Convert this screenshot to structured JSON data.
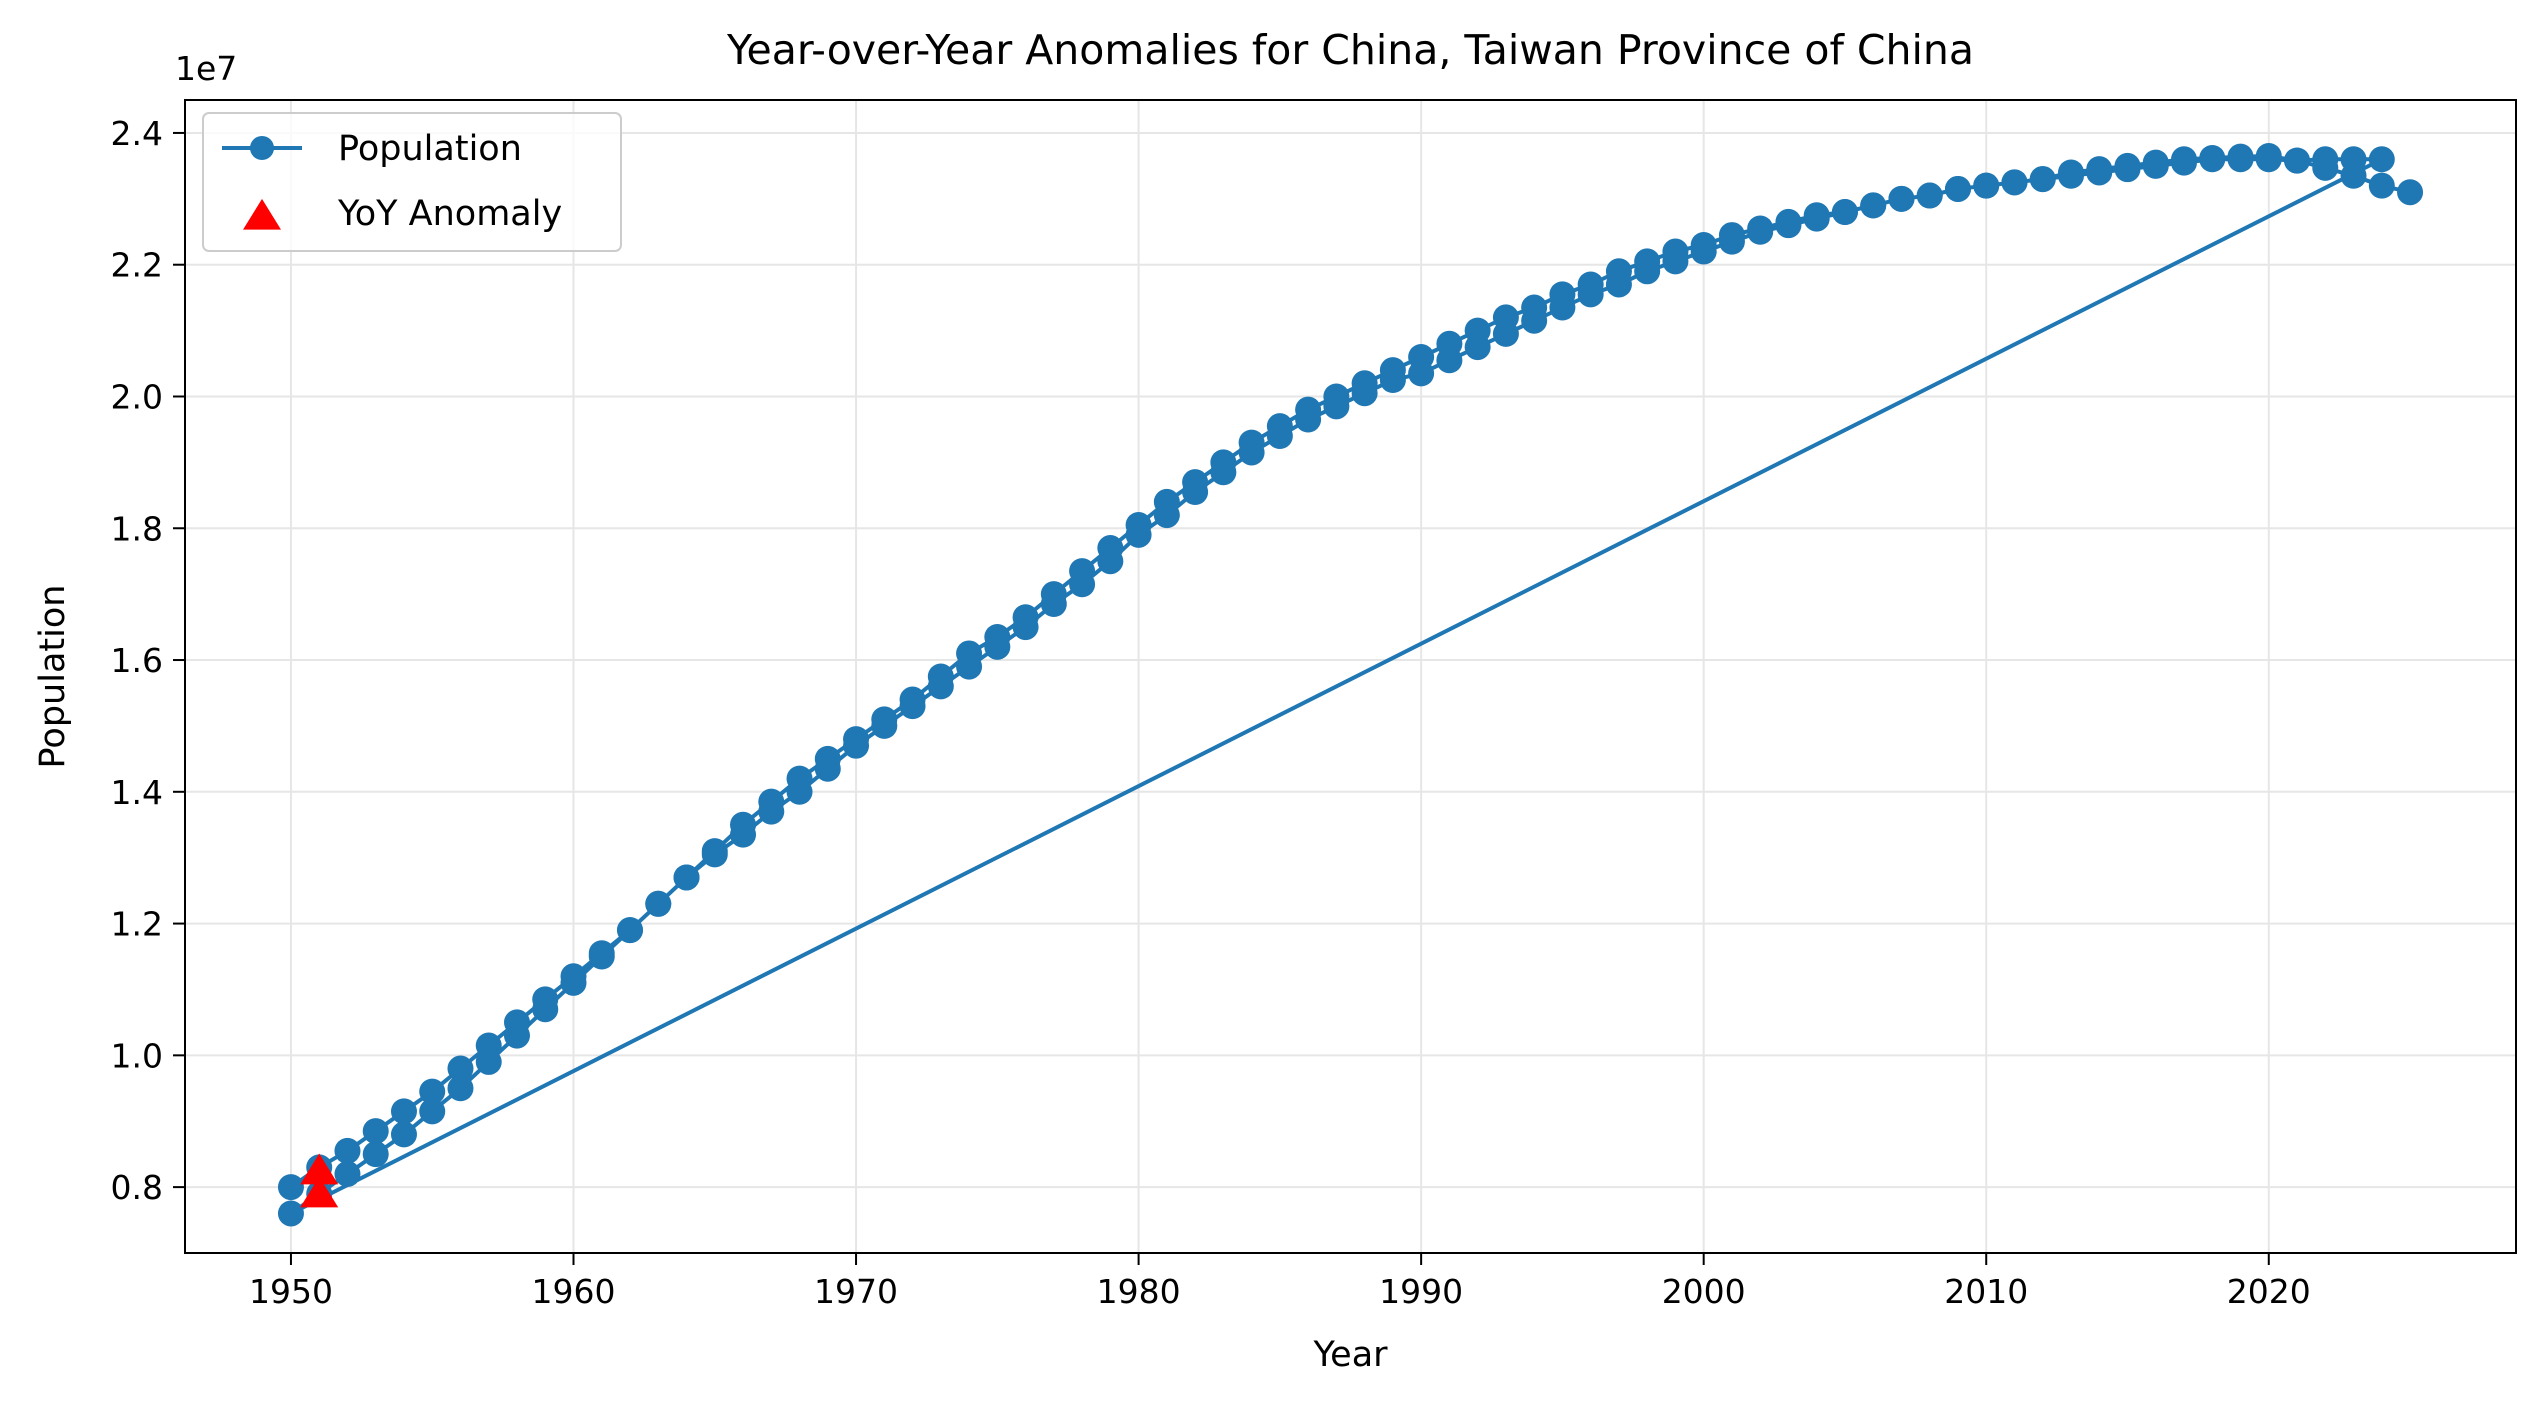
{
  "chart_data": {
    "type": "line",
    "title": "Year-over-Year Anomalies for China, Taiwan Province of China",
    "xlabel": "Year",
    "ylabel": "Population",
    "y_scale_label": "1e7",
    "xlim": [
      1946.25,
      2028.75
    ],
    "ylim": [
      0.7,
      2.45
    ],
    "y_multiplier": 10000000,
    "xticks": [
      1950,
      1960,
      1970,
      1980,
      1990,
      2000,
      2010,
      2020
    ],
    "yticks": [
      0.8,
      1.0,
      1.2,
      1.4,
      1.6,
      1.8,
      2.0,
      2.2,
      2.4
    ],
    "ytick_labels": [
      "0.8",
      "1.0",
      "1.2",
      "1.4",
      "1.6",
      "1.8",
      "2.0",
      "2.2",
      "2.4"
    ],
    "grid": true,
    "legend_position": "top-left",
    "colors": {
      "line": "#1f77b4",
      "anomaly": "#ff0000",
      "grid": "#e6e6e6"
    },
    "series": [
      {
        "name": "Population",
        "marker": "circle",
        "x": [
          1950,
          1951,
          1952,
          1953,
          1954,
          1955,
          1956,
          1957,
          1958,
          1959,
          1960,
          1961,
          1962,
          1963,
          1964,
          1965,
          1966,
          1967,
          1968,
          1969,
          1970,
          1971,
          1972,
          1973,
          1974,
          1975,
          1976,
          1977,
          1978,
          1979,
          1980,
          1981,
          1982,
          1983,
          1984,
          1985,
          1986,
          1987,
          1988,
          1989,
          1990,
          1991,
          1992,
          1993,
          1994,
          1995,
          1996,
          1997,
          1998,
          1999,
          2000,
          2001,
          2002,
          2003,
          2004,
          2005,
          2006,
          2007,
          2008,
          2009,
          2010,
          2011,
          2012,
          2013,
          2014,
          2015,
          2016,
          2017,
          2018,
          2019,
          2020,
          2021,
          2022,
          2023,
          2024,
          1950,
          1951,
          1952,
          1953,
          1954,
          1955,
          1956,
          1957,
          1958,
          1959,
          1960,
          1961,
          1962,
          1963,
          1964,
          1965,
          1966,
          1967,
          1968,
          1969,
          1970,
          1971,
          1972,
          1973,
          1974,
          1975,
          1976,
          1977,
          1978,
          1979,
          1980,
          1981,
          1982,
          1983,
          1984,
          1985,
          1986,
          1987,
          1988,
          1989,
          1990,
          1991,
          1992,
          1993,
          1994,
          1995,
          1996,
          1997,
          1998,
          1999,
          2000,
          2001,
          2002,
          2003,
          2004,
          2005,
          2006,
          2007,
          2008,
          2009,
          2010,
          2011,
          2012,
          2013,
          2014,
          2015,
          2016,
          2017,
          2018,
          2019,
          2020,
          2021,
          2022,
          2023,
          2024,
          2025
        ],
        "y": [
          0.8,
          0.83,
          0.855,
          0.885,
          0.915,
          0.945,
          0.98,
          1.015,
          1.05,
          1.085,
          1.12,
          1.155,
          1.19,
          1.23,
          1.27,
          1.31,
          1.35,
          1.385,
          1.42,
          1.45,
          1.48,
          1.51,
          1.54,
          1.575,
          1.61,
          1.635,
          1.665,
          1.7,
          1.735,
          1.77,
          1.805,
          1.84,
          1.87,
          1.9,
          1.93,
          1.955,
          1.98,
          2.0,
          2.02,
          2.04,
          2.06,
          2.08,
          2.1,
          2.12,
          2.135,
          2.155,
          2.17,
          2.19,
          2.205,
          2.22,
          2.23,
          2.245,
          2.255,
          2.265,
          2.275,
          2.28,
          2.29,
          2.3,
          2.305,
          2.315,
          2.32,
          2.325,
          2.33,
          2.34,
          2.345,
          2.35,
          2.355,
          2.36,
          2.362,
          2.364,
          2.365,
          2.358,
          2.36,
          2.36,
          2.36,
          0.76,
          0.79,
          0.82,
          0.85,
          0.88,
          0.915,
          0.95,
          0.99,
          1.03,
          1.07,
          1.11,
          1.15,
          1.19,
          1.23,
          1.27,
          1.305,
          1.335,
          1.37,
          1.4,
          1.435,
          1.47,
          1.5,
          1.53,
          1.56,
          1.59,
          1.62,
          1.65,
          1.685,
          1.715,
          1.75,
          1.79,
          1.82,
          1.855,
          1.885,
          1.915,
          1.94,
          1.965,
          1.985,
          2.005,
          2.025,
          2.035,
          2.055,
          2.075,
          2.095,
          2.115,
          2.135,
          2.155,
          2.17,
          2.19,
          2.205,
          2.22,
          2.235,
          2.25,
          2.26,
          2.27,
          2.28,
          2.29,
          2.3,
          2.305,
          2.315,
          2.32,
          2.325,
          2.33,
          2.335,
          2.34,
          2.345,
          2.35,
          2.355,
          2.36,
          2.36,
          2.36,
          2.358,
          2.347,
          2.335,
          2.32,
          2.31
        ]
      },
      {
        "name": "YoY Anomaly",
        "marker": "triangle",
        "x": [
          1951,
          1951
        ],
        "y": [
          0.825,
          0.79
        ]
      }
    ]
  }
}
